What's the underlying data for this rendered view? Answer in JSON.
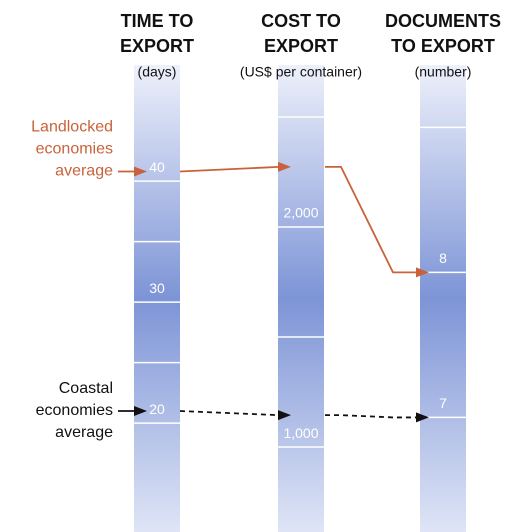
{
  "chart_data": {
    "type": "parallel",
    "axes": [
      {
        "title_lines": [
          "TIME TO",
          "EXPORT"
        ],
        "unit": "(days)",
        "ylim": [
          11.0,
          49.6
        ],
        "yticks": [
          20,
          30,
          40
        ],
        "minor_ticks": [
          25,
          35
        ]
      },
      {
        "title_lines": [
          "COST TO",
          "EXPORT"
        ],
        "unit": "(US$ per container)",
        "ylim": [
          614,
          2736
        ],
        "yticks": [
          {
            "value": 1000,
            "label": "1,000"
          },
          {
            "value": 2000,
            "label": "2,000"
          }
        ],
        "minor_ticks": [
          1500,
          2500
        ]
      },
      {
        "title_lines": [
          "DOCUMENTS",
          "TO EXPORT"
        ],
        "unit": "(number)",
        "ylim": [
          6.21,
          9.43
        ],
        "yticks": [
          7,
          8
        ],
        "minor_ticks": [
          9
        ]
      }
    ],
    "series": [
      {
        "label_lines": [
          "Landlocked",
          "economies",
          "average"
        ],
        "color": "#c9623a",
        "line_style": "solid",
        "values": [
          40.8,
          2273,
          8
        ]
      },
      {
        "label_lines": [
          "Coastal",
          "economies",
          "average"
        ],
        "color": "#111111",
        "line_style": "dashed",
        "values": [
          21,
          1145,
          7
        ]
      }
    ]
  }
}
